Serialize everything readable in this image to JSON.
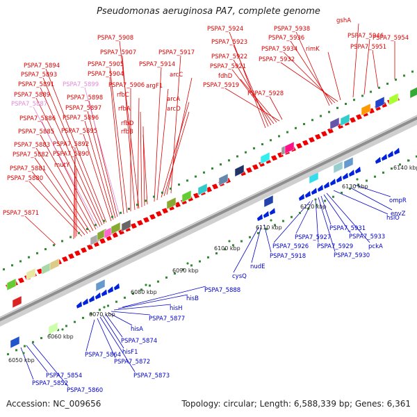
{
  "title": "Pseudomonas aeruginosa PA7, complete genome",
  "footer": {
    "accession": "Accession: NC_009656",
    "summary": "Topology: circular; Length: 6,588,339 bp; Genes: 6,361"
  },
  "colors": {
    "forward_label": "#dd0000",
    "reverse_label": "#0000cc",
    "pseudo_label": "#e08ad8",
    "forward_feature": "#ee0000",
    "reverse_feature": "#0022dd",
    "backbone": "#999999"
  },
  "scale_labels": [
    "6050 kbp",
    "6060 kbp",
    "6070 kbp",
    "6080 kbp",
    "6090 kbp",
    "6100 kbp",
    "6110 kbp",
    "6120 kbp",
    "6130 kbp",
    "6140 kbp"
  ],
  "forward_labels": [
    "PSPA7_5880",
    "PSPA7_5881",
    "PSPA7_5882",
    "PSPA7_5883",
    "PSPA7_5885",
    "PSPA7_5886",
    "PSPA7_5887",
    "PSPA7_5889",
    "PSPA7_5891",
    "PSPA7_5893",
    "PSPA7_5894",
    "PSPA7_5871",
    "mutY",
    "PSPA7_5890",
    "PSPA7_5892",
    "PSPA7_5895",
    "PSPA7_5896",
    "PSPA7_5897",
    "PSPA7_5898",
    "PSPA7_5899",
    "PSPA7_5904",
    "PSPA7_5905",
    "PSPA7_5906",
    "PSPA7_5907",
    "PSPA7_5908",
    "rfbC",
    "rfbA",
    "rfbD",
    "rfbB",
    "PSPA7_5914",
    "argF1",
    "arcA",
    "arcD",
    "arcC",
    "PSPA7_5917",
    "PSPA7_5924",
    "PSPA7_5923",
    "PSPA7_5922",
    "PSPA7_5921",
    "fdhD",
    "PSPA7_5919",
    "PSPA7_5928",
    "PSPA7_5938",
    "PSPA7_5936",
    "PSPA7_5934",
    "PSPA7_5932",
    "rimK",
    "gshA",
    "PSPA7_5946",
    "PSPA7_5951",
    "PSPA7_5954"
  ],
  "reverse_labels": [
    "PSPA7_5852",
    "PSPA7_5854",
    "PSPA7_5860",
    "PSPA7_5864",
    "PSPA7_5872",
    "PSPA7_5873",
    "hisF1",
    "PSPA7_5874",
    "hisA",
    "PSPA7_5877",
    "hisH",
    "hisB",
    "PSPA7_5888",
    "cysQ",
    "nudE",
    "PSPA7_5918",
    "PSPA7_5926",
    "PSPA7_5927",
    "PSPA7_5929",
    "PSPA7_5930",
    "PSPA7_5931",
    "PSPA7_5933",
    "pckA",
    "hslO",
    "envZ",
    "ompR"
  ]
}
